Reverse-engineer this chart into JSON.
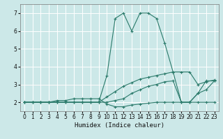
{
  "xlabel": "Humidex (Indice chaleur)",
  "bg_color": "#cce8e8",
  "grid_color": "#ffffff",
  "line_color": "#2a7a6a",
  "red_line_color": "#cc6666",
  "xlim": [
    -0.5,
    23.5
  ],
  "ylim": [
    1.5,
    7.5
  ],
  "xticks": [
    0,
    1,
    2,
    3,
    4,
    5,
    6,
    7,
    8,
    9,
    10,
    11,
    12,
    13,
    14,
    15,
    16,
    17,
    18,
    19,
    20,
    21,
    22,
    23
  ],
  "yticks": [
    2,
    3,
    4,
    5,
    6,
    7
  ],
  "lines": [
    {
      "x": [
        0,
        1,
        2,
        3,
        4,
        5,
        6,
        7,
        8,
        9,
        10,
        11,
        12,
        13,
        14,
        15,
        16,
        17,
        18,
        19,
        20,
        21,
        22,
        23
      ],
      "y": [
        2,
        2,
        2,
        2,
        2,
        2,
        2,
        2,
        2,
        2,
        3.5,
        6.7,
        7.0,
        6.0,
        7.0,
        7.0,
        6.7,
        5.3,
        3.7,
        2.0,
        2.0,
        2.5,
        3.2,
        3.2
      ]
    },
    {
      "x": [
        0,
        1,
        2,
        3,
        4,
        5,
        6,
        7,
        8,
        9,
        10,
        11,
        12,
        13,
        14,
        15,
        16,
        17,
        18,
        19,
        20,
        21,
        22,
        23
      ],
      "y": [
        2,
        2,
        2,
        2,
        2,
        2,
        2,
        2,
        2,
        2,
        2.3,
        2.6,
        2.9,
        3.1,
        3.3,
        3.4,
        3.5,
        3.6,
        3.7,
        3.7,
        3.7,
        3.0,
        3.15,
        3.25
      ]
    },
    {
      "x": [
        0,
        1,
        2,
        3,
        4,
        5,
        6,
        7,
        8,
        9,
        10,
        11,
        12,
        13,
        14,
        15,
        16,
        17,
        18,
        19,
        20,
        21,
        22,
        23
      ],
      "y": [
        2,
        2,
        2,
        2,
        2,
        2,
        2,
        2,
        2,
        2,
        2.0,
        2.1,
        2.2,
        2.5,
        2.7,
        2.9,
        3.0,
        3.15,
        3.2,
        2.0,
        2.0,
        2.5,
        2.7,
        3.2
      ]
    },
    {
      "x": [
        0,
        1,
        2,
        3,
        4,
        5,
        6,
        7,
        8,
        9,
        10,
        11,
        12,
        13,
        14,
        15,
        16,
        17,
        18,
        19,
        20,
        21,
        22,
        23
      ],
      "y": [
        2,
        2,
        2,
        2,
        2.1,
        2.1,
        2.2,
        2.2,
        2.2,
        2.2,
        1.9,
        1.75,
        1.75,
        1.85,
        1.9,
        1.95,
        2.0,
        2.0,
        2.0,
        2.0,
        2.0,
        2.0,
        2.0,
        2.0
      ]
    }
  ]
}
